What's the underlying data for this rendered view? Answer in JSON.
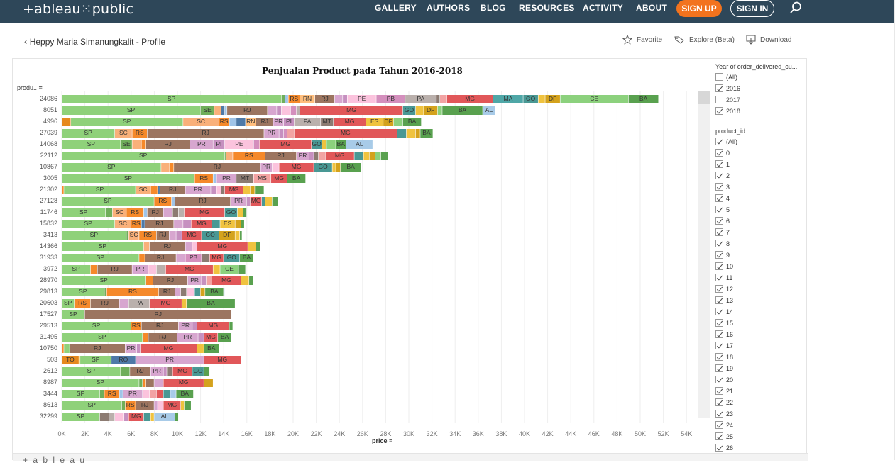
{
  "site": {
    "logo": "+ableau⁙public",
    "nav": [
      "GALLERY",
      "AUTHORS",
      "BLOG",
      "RESOURCES",
      "ACTIVITY",
      "ABOUT"
    ],
    "signup": "SIGN UP",
    "signin": "SIGN IN"
  },
  "profile": {
    "back_label": "Heppy Maria Simanungkalit - Profile"
  },
  "toolbar": {
    "favorite": "Favorite",
    "explore": "Explore (Beta)",
    "download": "Download"
  },
  "colors": {
    "SP": "#8fd17a",
    "SE": "#6fae5a",
    "SC": "#f9b07a",
    "RS": "#f5892a",
    "RR": "#a0c4e8",
    "RO": "#4e79a7",
    "RN": "#ffbe7d",
    "RJ": "#9c7560",
    "PR": "#d7a6cf",
    "PI": "#c690c0",
    "PE": "#fbc3dd",
    "PB": "#d48fbd",
    "PA": "#bab0ac",
    "MT": "#8c7b72",
    "MS": "#f2a3a3",
    "MG": "#e15759",
    "MA": "#4fa7a7",
    "GO": "#499894",
    "ES": "#f0c33f",
    "DF": "#d4a21c",
    "CE": "#8cd17d",
    "BA": "#59a14f",
    "AL": "#a8cbe8",
    "TO": "#e6891e",
    "AC": "#b6992d",
    "AM": "#86bcb6",
    "AP": "#9d7660",
    "MS2": "#d37295",
    "PB2": "#79706e"
  },
  "chart_data": {
    "type": "bar",
    "title": "Penjualan Product pada Tahun 2016-2018",
    "ylabel": "produ..",
    "xlabel": "price",
    "xlim": [
      0,
      55000
    ],
    "xticks": [
      "0K",
      "2K",
      "4K",
      "6K",
      "8K",
      "10K",
      "12K",
      "14K",
      "16K",
      "18K",
      "20K",
      "22K",
      "24K",
      "26K",
      "28K",
      "30K",
      "32K",
      "34K",
      "36K",
      "38K",
      "40K",
      "42K",
      "44K",
      "46K",
      "48K",
      "50K",
      "52K",
      "54K"
    ],
    "grid": true,
    "categories": [
      "24086",
      "8051",
      "4996",
      "27039",
      "14068",
      "22112",
      "10867",
      "3005",
      "21302",
      "27128",
      "11746",
      "15832",
      "3413",
      "14366",
      "31933",
      "3972",
      "28970",
      "29813",
      "20603",
      "17527",
      "29513",
      "31495",
      "10750",
      "503",
      "2612",
      "8987",
      "3444",
      "8613",
      "32299"
    ],
    "rows": [
      [
        [
          "SP",
          19000
        ],
        [
          "SE",
          300
        ],
        [
          "RR",
          300
        ],
        [
          "RS",
          1000
        ],
        [
          "RN",
          1300
        ],
        [
          "RJ",
          1700
        ],
        [
          "PR",
          700
        ],
        [
          "PI",
          400
        ],
        [
          "PE",
          2500
        ],
        [
          "PB",
          2500
        ],
        [
          "PA",
          2700
        ],
        [
          "MT",
          300
        ],
        [
          "MS",
          600
        ],
        [
          "MG",
          4000
        ],
        [
          "MA",
          2600
        ],
        [
          "GO",
          1300
        ],
        [
          "ES",
          600
        ],
        [
          "DF",
          1300
        ],
        [
          "CE",
          5900
        ],
        [
          "BA",
          2600
        ]
      ],
      [
        [
          "SP",
          12000
        ],
        [
          "SE",
          1200
        ],
        [
          "SC",
          600
        ],
        [
          "RO",
          300
        ],
        [
          "RR",
          200
        ],
        [
          "RJ",
          3500
        ],
        [
          "PR",
          800
        ],
        [
          "PI",
          400
        ],
        [
          "PE",
          800
        ],
        [
          "PB",
          500
        ],
        [
          "PA",
          300
        ],
        [
          "MG",
          8900
        ],
        [
          "GO",
          1100
        ],
        [
          "ES",
          700
        ],
        [
          "DF",
          1200
        ],
        [
          "CE",
          400
        ],
        [
          "BA",
          3500
        ],
        [
          "AL",
          1100
        ]
      ],
      [
        [
          "TO",
          800
        ],
        [
          "SP",
          9700
        ],
        [
          "SC",
          3100
        ],
        [
          "RS",
          900
        ],
        [
          "RR",
          600
        ],
        [
          "RO",
          800
        ],
        [
          "RN",
          900
        ],
        [
          "RJ",
          1500
        ],
        [
          "PR",
          900
        ],
        [
          "PI",
          900
        ],
        [
          "PA",
          2300
        ],
        [
          "MT",
          1100
        ],
        [
          "MG",
          2800
        ],
        [
          "ES",
          1500
        ],
        [
          "DF",
          900
        ],
        [
          "CE",
          800
        ],
        [
          "BA",
          1600
        ]
      ],
      [
        [
          "SP",
          4600
        ],
        [
          "SC",
          1500
        ],
        [
          "RS",
          1300
        ],
        [
          "RJ",
          10100
        ],
        [
          "PR",
          1300
        ],
        [
          "PI",
          400
        ],
        [
          "PB",
          300
        ],
        [
          "MS",
          600
        ],
        [
          "MG",
          8900
        ],
        [
          "GO",
          800
        ],
        [
          "ES",
          800
        ],
        [
          "DF",
          400
        ],
        [
          "BA",
          1100
        ]
      ],
      [
        [
          "SP",
          5100
        ],
        [
          "SE",
          1000
        ],
        [
          "SC",
          800
        ],
        [
          "RS",
          400
        ],
        [
          "RJ",
          3800
        ],
        [
          "PR",
          2000
        ],
        [
          "PI",
          1000
        ],
        [
          "PE",
          2500
        ],
        [
          "PB",
          500
        ],
        [
          "MG",
          4500
        ],
        [
          "GO",
          900
        ],
        [
          "ES",
          400
        ],
        [
          "CE",
          800
        ],
        [
          "BA",
          900
        ],
        [
          "AL",
          2300
        ]
      ],
      [
        [
          "SP",
          14100
        ],
        [
          "SE",
          100
        ],
        [
          "SC",
          600
        ],
        [
          "RS",
          2800
        ],
        [
          "RJ",
          2700
        ],
        [
          "PR",
          1100
        ],
        [
          "PI",
          400
        ],
        [
          "MT",
          400
        ],
        [
          "MS",
          600
        ],
        [
          "MG",
          2500
        ],
        [
          "GO",
          800
        ],
        [
          "ES",
          500
        ],
        [
          "DF",
          500
        ],
        [
          "CE",
          500
        ],
        [
          "BA",
          600
        ]
      ],
      [
        [
          "SP",
          8600
        ],
        [
          "SC",
          700
        ],
        [
          "RS",
          400
        ],
        [
          "RJ",
          7500
        ],
        [
          "PR",
          1000
        ],
        [
          "PE",
          600
        ],
        [
          "MG",
          3000
        ],
        [
          "GO",
          1600
        ],
        [
          "ES",
          300
        ],
        [
          "DF",
          400
        ],
        [
          "BA",
          1800
        ]
      ],
      [
        [
          "SP",
          11500
        ],
        [
          "RS",
          1600
        ],
        [
          "RR",
          300
        ],
        [
          "PR",
          1700
        ],
        [
          "MT",
          1500
        ],
        [
          "MS",
          1500
        ],
        [
          "MG",
          1400
        ],
        [
          "BA",
          1600
        ]
      ],
      [
        [
          "RS",
          200
        ],
        [
          "SP",
          6200
        ],
        [
          "SC",
          1300
        ],
        [
          "RS",
          600
        ],
        [
          "RO",
          200
        ],
        [
          "RJ",
          2200
        ],
        [
          "PR",
          2200
        ],
        [
          "PI",
          500
        ],
        [
          "PE",
          400
        ],
        [
          "MT",
          300
        ],
        [
          "MG",
          1600
        ],
        [
          "ES",
          600
        ],
        [
          "DF",
          400
        ],
        [
          "BA",
          800
        ]
      ],
      [
        [
          "SP",
          8000
        ],
        [
          "RS",
          1500
        ],
        [
          "RR",
          300
        ],
        [
          "RJ",
          4800
        ],
        [
          "PR",
          1400
        ],
        [
          "PI",
          300
        ],
        [
          "MG",
          1000
        ],
        [
          "GO",
          300
        ],
        [
          "ES",
          600
        ],
        [
          "BA",
          500
        ]
      ],
      [
        [
          "SP",
          3800
        ],
        [
          "SE",
          600
        ],
        [
          "SC",
          1200
        ],
        [
          "RS",
          1500
        ],
        [
          "RR",
          300
        ],
        [
          "RJ",
          1400
        ],
        [
          "PR",
          800
        ],
        [
          "MT",
          500
        ],
        [
          "PA",
          500
        ],
        [
          "MG",
          3500
        ],
        [
          "GO",
          1100
        ],
        [
          "ES",
          500
        ],
        [
          "BA",
          300
        ]
      ],
      [
        [
          "SP",
          4600
        ],
        [
          "SC",
          1400
        ],
        [
          "RS",
          900
        ],
        [
          "RO",
          300
        ],
        [
          "RJ",
          2500
        ],
        [
          "PR",
          800
        ],
        [
          "PI",
          700
        ],
        [
          "MG",
          1800
        ],
        [
          "GO",
          700
        ],
        [
          "ES",
          1300
        ],
        [
          "DF",
          500
        ],
        [
          "BA",
          300
        ]
      ],
      [
        [
          "SP",
          5600
        ],
        [
          "SE",
          200
        ],
        [
          "SC",
          900
        ],
        [
          "RS",
          1500
        ],
        [
          "RJ",
          1100
        ],
        [
          "PR",
          600
        ],
        [
          "PI",
          500
        ],
        [
          "MG",
          1700
        ],
        [
          "GO",
          1500
        ],
        [
          "DF",
          1400
        ],
        [
          "ES",
          400
        ],
        [
          "BA",
          200
        ]
      ],
      [
        [
          "SP",
          7100
        ],
        [
          "SC",
          500
        ],
        [
          "RJ",
          3100
        ],
        [
          "PR",
          600
        ],
        [
          "PE",
          400
        ],
        [
          "MG",
          4400
        ],
        [
          "ES",
          700
        ],
        [
          "BA",
          400
        ]
      ],
      [
        [
          "SP",
          6700
        ],
        [
          "RS",
          500
        ],
        [
          "RJ",
          2700
        ],
        [
          "PR",
          800
        ],
        [
          "PB",
          1400
        ],
        [
          "MT",
          700
        ],
        [
          "MG",
          1200
        ],
        [
          "GO",
          1400
        ],
        [
          "BA",
          1200
        ]
      ],
      [
        [
          "SP",
          2500
        ],
        [
          "RS",
          600
        ],
        [
          "RJ",
          3000
        ],
        [
          "PR",
          1400
        ],
        [
          "PE",
          700
        ],
        [
          "PA",
          800
        ],
        [
          "MG",
          4100
        ],
        [
          "ES",
          600
        ],
        [
          "CE",
          1600
        ],
        [
          "BA",
          600
        ]
      ],
      [
        [
          "SP",
          7300
        ],
        [
          "RS",
          600
        ],
        [
          "RJ",
          3000
        ],
        [
          "PR",
          1200
        ],
        [
          "PI",
          400
        ],
        [
          "MS",
          500
        ],
        [
          "MG",
          2500
        ],
        [
          "ES",
          700
        ],
        [
          "BA",
          400
        ]
      ],
      [
        [
          "SP",
          3700
        ],
        [
          "SE",
          200
        ],
        [
          "RS",
          4500
        ],
        [
          "RJ",
          1400
        ],
        [
          "PR",
          500
        ],
        [
          "MT",
          500
        ],
        [
          "PE",
          700
        ],
        [
          "GO",
          500
        ],
        [
          "DF",
          400
        ],
        [
          "BA",
          1600
        ],
        [
          "AL",
          100
        ]
      ],
      [
        [
          "SP",
          1100
        ],
        [
          "RS",
          1400
        ],
        [
          "RJ",
          2500
        ],
        [
          "PR",
          800
        ],
        [
          "PA",
          1800
        ],
        [
          "MG",
          2800
        ],
        [
          "ES",
          400
        ],
        [
          "BA",
          4200
        ]
      ],
      [
        [
          "SP",
          2000
        ],
        [
          "RJ",
          12700
        ]
      ],
      [
        [
          "SP",
          6000
        ],
        [
          "RS",
          900
        ],
        [
          "RJ",
          3200
        ],
        [
          "PR",
          1200
        ],
        [
          "PI",
          400
        ],
        [
          "MG",
          2800
        ],
        [
          "BA",
          300
        ]
      ],
      [
        [
          "SP",
          7000
        ],
        [
          "RS",
          500
        ],
        [
          "RJ",
          2500
        ],
        [
          "PR",
          1800
        ],
        [
          "PI",
          500
        ],
        [
          "MG",
          1200
        ],
        [
          "BA",
          1200
        ]
      ],
      [
        [
          "RS",
          200
        ],
        [
          "SP",
          500
        ],
        [
          "RJ",
          4800
        ],
        [
          "PR",
          1000
        ],
        [
          "PI",
          300
        ],
        [
          "MG",
          4900
        ],
        [
          "ES",
          600
        ],
        [
          "BA",
          1300
        ]
      ],
      [
        [
          "TO",
          1500
        ],
        [
          "ES",
          100
        ],
        [
          "SP",
          2700
        ],
        [
          "RO",
          2100
        ],
        [
          "PR",
          5900
        ],
        [
          "MG",
          3200
        ]
      ],
      [
        [
          "SP",
          5100
        ],
        [
          "SE",
          800
        ],
        [
          "RJ",
          1800
        ],
        [
          "PR",
          1100
        ],
        [
          "PI",
          300
        ],
        [
          "MT",
          500
        ],
        [
          "MG",
          1700
        ],
        [
          "GO",
          1000
        ],
        [
          "BA",
          500
        ]
      ],
      [
        [
          "SP",
          6700
        ],
        [
          "SE",
          300
        ],
        [
          "RS",
          300
        ],
        [
          "RJ",
          700
        ],
        [
          "PR",
          800
        ],
        [
          "MG",
          3500
        ],
        [
          "DF",
          800
        ]
      ],
      [
        [
          "SP",
          3300
        ],
        [
          "SE",
          400
        ],
        [
          "RS",
          1300
        ],
        [
          "RR",
          300
        ],
        [
          "PR",
          1700
        ],
        [
          "PE",
          600
        ],
        [
          "MS",
          600
        ],
        [
          "MG",
          600
        ],
        [
          "GO",
          600
        ],
        [
          "AL",
          500
        ],
        [
          "BA",
          1500
        ]
      ],
      [
        [
          "SP",
          5200
        ],
        [
          "SE",
          300
        ],
        [
          "RS",
          900
        ],
        [
          "RJ",
          1600
        ],
        [
          "PR",
          300
        ],
        [
          "PE",
          500
        ],
        [
          "MG",
          1500
        ],
        [
          "ES",
          300
        ],
        [
          "BA",
          600
        ]
      ],
      [
        [
          "SP",
          3300
        ],
        [
          "MT",
          800
        ],
        [
          "PA",
          500
        ],
        [
          "PE",
          800
        ],
        [
          "PI",
          400
        ],
        [
          "MG",
          1300
        ],
        [
          "GO",
          600
        ],
        [
          "ES",
          300
        ],
        [
          "AL",
          1800
        ],
        [
          "BA",
          300
        ]
      ]
    ]
  },
  "filters": {
    "year": {
      "title": "Year of order_delivered_cu...",
      "items": [
        {
          "label": "(All)",
          "checked": false
        },
        {
          "label": "2016",
          "checked": true
        },
        {
          "label": "2017",
          "checked": false
        },
        {
          "label": "2018",
          "checked": true
        }
      ]
    },
    "product": {
      "title": "product_id",
      "items": [
        "(All)",
        "0",
        "1",
        "2",
        "3",
        "4",
        "5",
        "6",
        "7",
        "8",
        "9",
        "10",
        "11",
        "12",
        "13",
        "14",
        "15",
        "16",
        "17",
        "18",
        "19",
        "20",
        "21",
        "22",
        "23",
        "24",
        "25",
        "26"
      ]
    }
  },
  "footer": {
    "brand": "+ a b l e a u"
  }
}
